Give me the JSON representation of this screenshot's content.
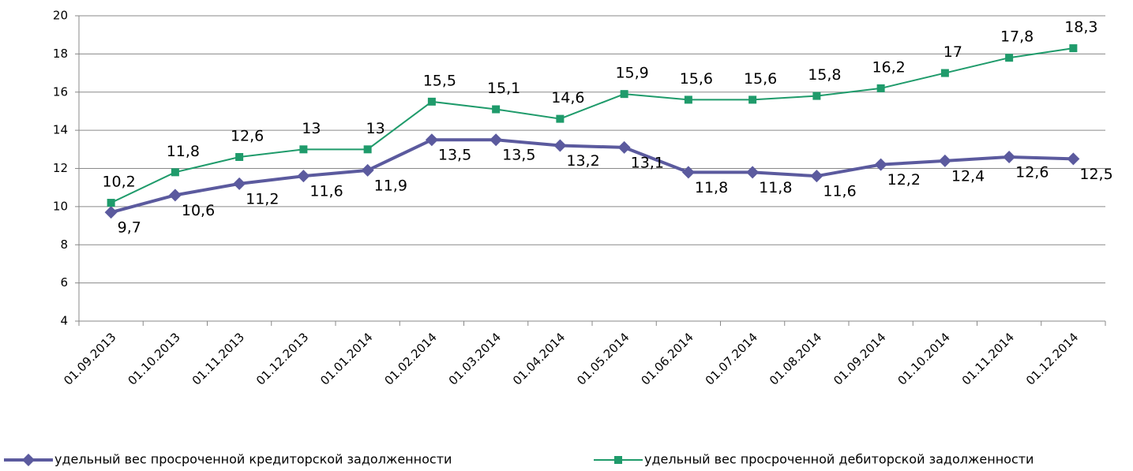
{
  "chart_data": {
    "type": "line",
    "categories": [
      "01.09.2013",
      "01.10.2013",
      "01.11.2013",
      "01.12.2013",
      "01.01.2014",
      "01.02.2014",
      "01.03.2014",
      "01.04.2014",
      "01.05.2014",
      "01.06.2014",
      "01.07.2014",
      "01.08.2014",
      "01.09.2014",
      "01.10.2014",
      "01.11.2014",
      "01.12.2014"
    ],
    "series": [
      {
        "name": "удельный вес просроченной кредиторской задолженности",
        "color": "#5b5a9e",
        "marker": "diamond",
        "values": [
          9.7,
          10.6,
          11.2,
          11.6,
          11.9,
          13.5,
          13.5,
          13.2,
          13.1,
          11.8,
          11.8,
          11.6,
          12.2,
          12.4,
          12.6,
          12.5
        ],
        "value_labels": [
          "9,7",
          "10,6",
          "11,2",
          "11,6",
          "11,9",
          "13,5",
          "13,5",
          "13,2",
          "13,1",
          "11,8",
          "11,8",
          "11,6",
          "12,2",
          "12,4",
          "12,6",
          "12,5"
        ]
      },
      {
        "name": "удельный вес просроченной дебиторской задолженности",
        "color": "#1f9b6b",
        "marker": "square",
        "values": [
          10.2,
          11.8,
          12.6,
          13,
          13,
          15.5,
          15.1,
          14.6,
          15.9,
          15.6,
          15.6,
          15.8,
          16.2,
          17,
          17.8,
          18.3
        ],
        "value_labels": [
          "10,2",
          "11,8",
          "12,6",
          "13",
          "13",
          "15,5",
          "15,1",
          "14,6",
          "15,9",
          "15,6",
          "15,6",
          "15,8",
          "16,2",
          "17",
          "17,8",
          "18,3"
        ]
      }
    ],
    "ylim": [
      4,
      20
    ],
    "yticks": [
      4,
      6,
      8,
      10,
      12,
      14,
      16,
      18,
      20
    ],
    "grid": true
  }
}
